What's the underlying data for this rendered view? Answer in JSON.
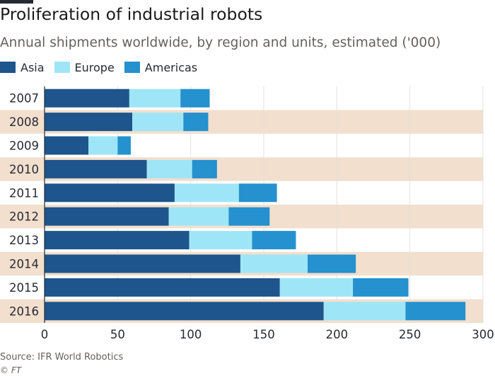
{
  "title": "Proliferation of industrial robots",
  "subtitle": "Annual shipments worldwide, by region and units, estimated ('000)",
  "source": "Source: IFR World Robotics",
  "copyright": "© FT",
  "colors": {
    "asia": "#1e558c",
    "europe": "#9ee6f7",
    "americas": "#2591ce",
    "band": "#f2dfce",
    "grid": "#e6e1dc",
    "text": "#262a33",
    "axis": "#66605c"
  },
  "chart_data": {
    "type": "bar",
    "orientation": "horizontal",
    "stacked": true,
    "categories": [
      "2007",
      "2008",
      "2009",
      "2010",
      "2011",
      "2012",
      "2013",
      "2014",
      "2015",
      "2016"
    ],
    "series": [
      {
        "name": "Asia",
        "color": "#1e558c",
        "values": [
          58,
          60,
          30,
          70,
          89,
          85,
          99,
          134,
          161,
          191
        ]
      },
      {
        "name": "Europe",
        "color": "#9ee6f7",
        "values": [
          35,
          35,
          20,
          31,
          44,
          41,
          43,
          46,
          50,
          56
        ]
      },
      {
        "name": "Americas",
        "color": "#2591ce",
        "values": [
          20,
          17,
          9,
          17,
          26,
          28,
          30,
          33,
          38,
          41
        ]
      }
    ],
    "xlim": [
      0,
      300
    ],
    "xticks": [
      0,
      50,
      100,
      150,
      200,
      250,
      300
    ],
    "grid": true,
    "legend": "top-left"
  }
}
